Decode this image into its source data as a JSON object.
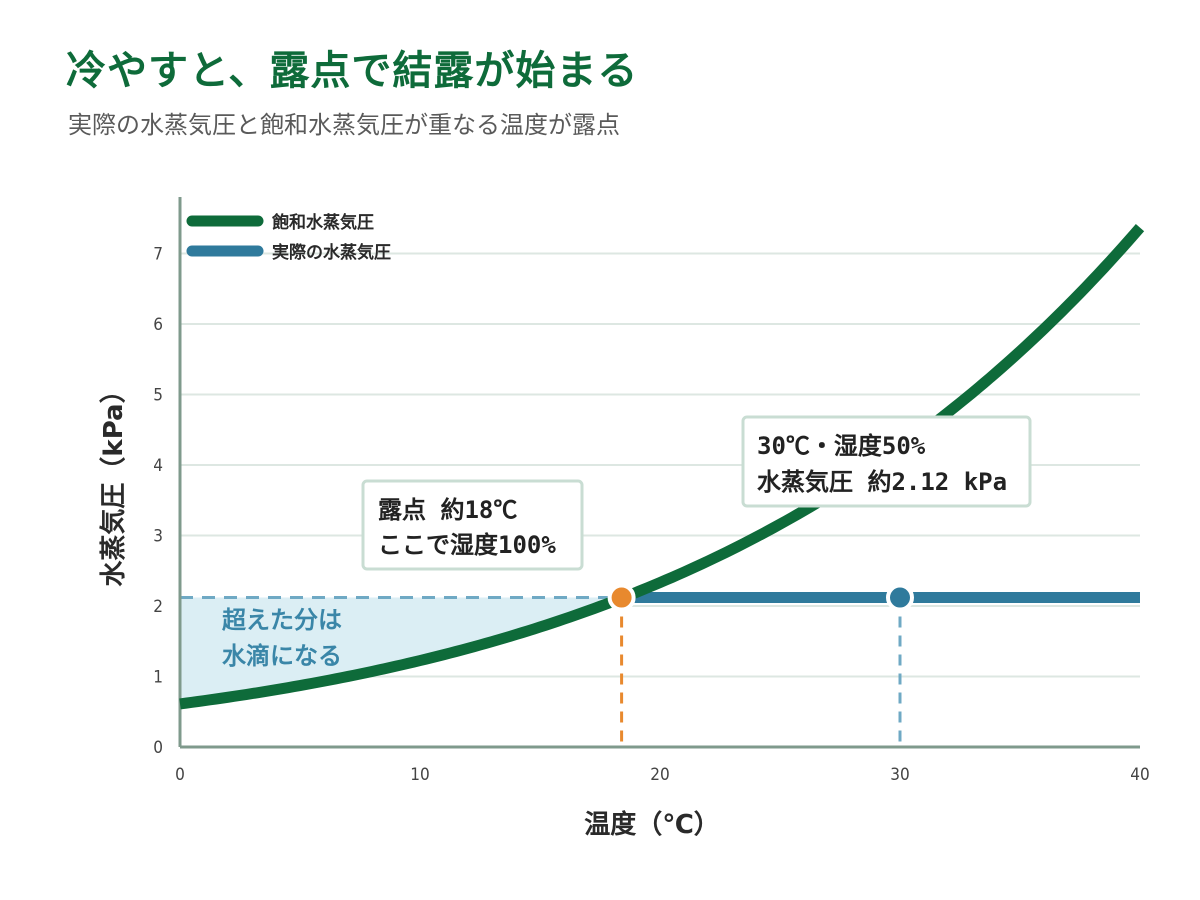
{
  "header": {
    "title": "冷やすと、露点で結露が始まる",
    "subtitle": "実際の水蒸気圧と飽和水蒸気圧が重なる温度が露点"
  },
  "colors": {
    "saturation": "#0e6b3a",
    "actual": "#2f7a9c",
    "dew_point": "#e8892e",
    "excess_fill": "#dbeef4",
    "grid": "#dde7e2",
    "axis": "#7f9a8c"
  },
  "chart_data": {
    "type": "line",
    "title": "冷やすと、露点で結露が始まる",
    "subtitle": "実際の水蒸気圧と飽和水蒸気圧が重なる温度が露点",
    "xlabel": "温度（℃）",
    "ylabel": "水蒸気圧（kPa）",
    "xlim": [
      0,
      40
    ],
    "ylim": [
      0,
      7.5
    ],
    "xticks": [
      "0",
      "10",
      "20",
      "30",
      "40"
    ],
    "yticks": [
      "0",
      "1",
      "2",
      "3",
      "4",
      "5",
      "6",
      "7"
    ],
    "grid": true,
    "legend_position": "top-left",
    "series": [
      {
        "name": "飽和水蒸気圧",
        "x": [
          0,
          5,
          10,
          15,
          18.4,
          20,
          25,
          30,
          35,
          40
        ],
        "y": [
          0.61,
          0.87,
          1.23,
          1.7,
          2.12,
          2.34,
          3.17,
          4.25,
          5.63,
          7.38
        ]
      },
      {
        "name": "実際の水蒸気圧",
        "x": [
          18.4,
          40
        ],
        "y": [
          2.12,
          2.12
        ]
      }
    ],
    "points": [
      {
        "label": "dew-point",
        "x": 18.4,
        "y": 2.12
      },
      {
        "label": "30c-50pct",
        "x": 30,
        "y": 2.12
      }
    ],
    "annotations": {
      "dew_point": [
        "露点 約18℃",
        "ここで湿度100%"
      ],
      "current": [
        "30℃・湿度50%",
        "水蒸気圧 約2.12 kPa"
      ],
      "excess": [
        "超えた分は",
        "水滴になる"
      ]
    }
  }
}
